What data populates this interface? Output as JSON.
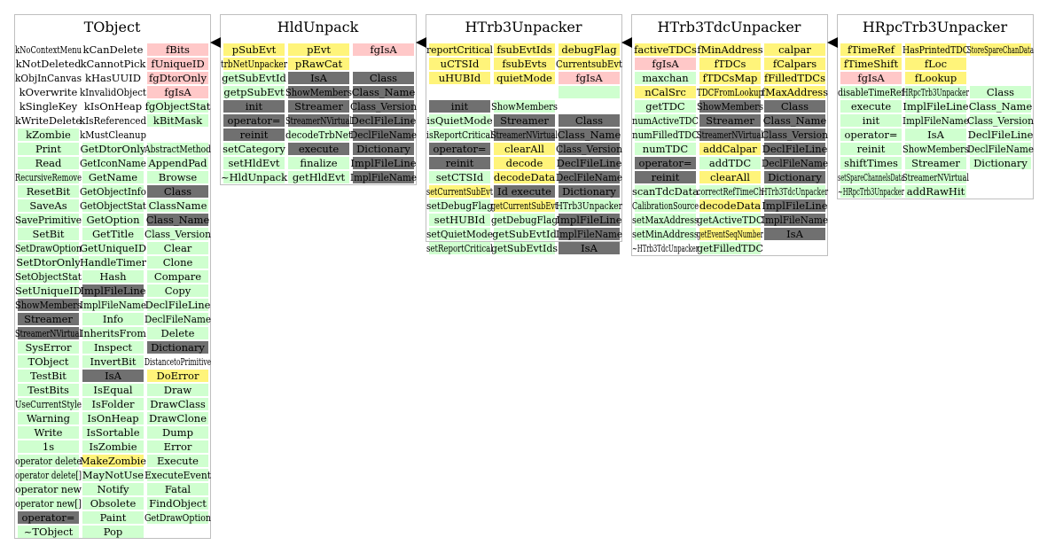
{
  "colors": {
    "Y": "#fff47a",
    "P": "#ffc8c8",
    "G": "#cfffcf",
    "D": "#707070",
    "W": "#ffffff",
    "border": "#bfbfbf",
    "arrow": "#000000"
  },
  "classes": [
    {
      "name": "TObject",
      "columns": [
        [
          [
            "kNoContextMenu",
            "W"
          ],
          [
            "kNotDeleted",
            "W"
          ],
          [
            "kObjInCanvas",
            "W"
          ],
          [
            "kOverwrite",
            "W"
          ],
          [
            "kSingleKey",
            "W"
          ],
          [
            "kWriteDelete",
            "W"
          ],
          [
            "kZombie",
            "G"
          ],
          [
            "Print",
            "G"
          ],
          [
            "Read",
            "G"
          ],
          [
            "RecursiveRemove",
            "G"
          ],
          [
            "ResetBit",
            "G"
          ],
          [
            "SaveAs",
            "G"
          ],
          [
            "SavePrimitive",
            "G"
          ],
          [
            "SetBit",
            "G"
          ],
          [
            "SetDrawOption",
            "G"
          ],
          [
            "SetDtorOnly",
            "G"
          ],
          [
            "SetObjectStat",
            "G"
          ],
          [
            "SetUniqueID",
            "G"
          ],
          [
            "ShowMembers",
            "D"
          ],
          [
            "Streamer",
            "D"
          ],
          [
            "StreamerNVirtual",
            "D"
          ],
          [
            "SysError",
            "G"
          ],
          [
            "TObject",
            "G"
          ],
          [
            "TestBit",
            "G"
          ],
          [
            "TestBits",
            "G"
          ],
          [
            "UseCurrentStyle",
            "G"
          ],
          [
            "Warning",
            "G"
          ],
          [
            "Write",
            "G"
          ],
          [
            "1s",
            "G"
          ],
          [
            "operator delete",
            "G"
          ],
          [
            "operator delete[]",
            "G"
          ],
          [
            "operator new",
            "G"
          ],
          [
            "operator new[]",
            "G"
          ],
          [
            "operator=",
            "D"
          ],
          [
            "~TObject",
            "G"
          ]
        ],
        [
          [
            "kCanDelete",
            "W"
          ],
          [
            "kCannotPick",
            "W"
          ],
          [
            "kHasUUID",
            "W"
          ],
          [
            "kInvalidObject",
            "W"
          ],
          [
            "kIsOnHeap",
            "W"
          ],
          [
            "kIsReferenced",
            "W"
          ],
          [
            "kMustCleanup",
            "W"
          ],
          [
            "GetDtorOnly",
            "G"
          ],
          [
            "GetIconName",
            "G"
          ],
          [
            "GetName",
            "G"
          ],
          [
            "GetObjectInfo",
            "G"
          ],
          [
            "GetObjectStat",
            "G"
          ],
          [
            "GetOption",
            "G"
          ],
          [
            "GetTitle",
            "G"
          ],
          [
            "GetUniqueID",
            "G"
          ],
          [
            "HandleTimer",
            "G"
          ],
          [
            "Hash",
            "G"
          ],
          [
            "ImplFileLine",
            "D"
          ],
          [
            "ImplFileName",
            "G"
          ],
          [
            "Info",
            "G"
          ],
          [
            "InheritsFrom",
            "G"
          ],
          [
            "Inspect",
            "G"
          ],
          [
            "InvertBit",
            "G"
          ],
          [
            "IsA",
            "D"
          ],
          [
            "IsEqual",
            "G"
          ],
          [
            "IsFolder",
            "G"
          ],
          [
            "IsOnHeap",
            "G"
          ],
          [
            "IsSortable",
            "G"
          ],
          [
            "IsZombie",
            "G"
          ],
          [
            "MakeZombie",
            "Y"
          ],
          [
            "MayNotUse",
            "G"
          ],
          [
            "Notify",
            "G"
          ],
          [
            "Obsolete",
            "G"
          ],
          [
            "Paint",
            "G"
          ],
          [
            "Pop",
            "G"
          ]
        ],
        [
          [
            "fBits",
            "P"
          ],
          [
            "fUniqueID",
            "P"
          ],
          [
            "fgDtorOnly",
            "P"
          ],
          [
            "fgIsA",
            "P"
          ],
          [
            "fgObjectStat",
            "G"
          ],
          [
            "kBitMask",
            "G"
          ],
          [
            "",
            "W"
          ],
          [
            "AbstractMethod",
            "G"
          ],
          [
            "AppendPad",
            "G"
          ],
          [
            "Browse",
            "G"
          ],
          [
            "Class",
            "D"
          ],
          [
            "ClassName",
            "G"
          ],
          [
            "Class_Name",
            "D"
          ],
          [
            "Class_Version",
            "G"
          ],
          [
            "Clear",
            "G"
          ],
          [
            "Clone",
            "G"
          ],
          [
            "Compare",
            "G"
          ],
          [
            "Copy",
            "G"
          ],
          [
            "DeclFileLine",
            "G"
          ],
          [
            "DeclFileName",
            "G"
          ],
          [
            "Delete",
            "G"
          ],
          [
            "Dictionary",
            "D"
          ],
          [
            "DistancetoPrimitive",
            "W"
          ],
          [
            "DoError",
            "Y"
          ],
          [
            "Draw",
            "G"
          ],
          [
            "DrawClass",
            "G"
          ],
          [
            "DrawClone",
            "G"
          ],
          [
            "Dump",
            "G"
          ],
          [
            "Error",
            "G"
          ],
          [
            "Execute",
            "G"
          ],
          [
            "ExecuteEvent",
            "G"
          ],
          [
            "Fatal",
            "G"
          ],
          [
            "FindObject",
            "G"
          ],
          [
            "GetDrawOption",
            "G"
          ]
        ]
      ]
    },
    {
      "name": "HldUnpack",
      "columns": [
        [
          [
            "pSubEvt",
            "Y"
          ],
          [
            "trbNetUnpacker",
            "Y"
          ],
          [
            "getSubEvtId",
            "G"
          ],
          [
            "getpSubEvt",
            "G"
          ],
          [
            "init",
            "D"
          ],
          [
            "operator=",
            "D"
          ],
          [
            "reinit",
            "D"
          ],
          [
            "setCategory",
            "G"
          ],
          [
            "setHldEvt",
            "G"
          ],
          [
            "~HldUnpack",
            "G"
          ]
        ],
        [
          [
            "pEvt",
            "Y"
          ],
          [
            "pRawCat",
            "Y"
          ],
          [
            "IsA",
            "D"
          ],
          [
            "ShowMembers",
            "D"
          ],
          [
            "Streamer",
            "D"
          ],
          [
            "StreamerNVirtual",
            "D"
          ],
          [
            "decodeTrbNet",
            "G"
          ],
          [
            "execute",
            "D"
          ],
          [
            "finalize",
            "G"
          ],
          [
            "getHldEvt",
            "G"
          ]
        ],
        [
          [
            "fgIsA",
            "P"
          ],
          [
            "",
            "W"
          ],
          [
            "Class",
            "D"
          ],
          [
            "Class_Name",
            "D"
          ],
          [
            "Class_Version",
            "D"
          ],
          [
            "DeclFileLine",
            "D"
          ],
          [
            "DeclFileName",
            "D"
          ],
          [
            "Dictionary",
            "D"
          ],
          [
            "ImplFileLine",
            "D"
          ],
          [
            "ImplFileName",
            "D"
          ]
        ]
      ]
    },
    {
      "name": "HTrb3Unpacker",
      "columns": [
        [
          [
            "reportCritical",
            "Y"
          ],
          [
            "uCTSId",
            "Y"
          ],
          [
            "uHUBId",
            "Y"
          ],
          [
            "",
            "W"
          ],
          [
            "init",
            "D"
          ],
          [
            "isQuietMode",
            "G"
          ],
          [
            "isReportCritical",
            "G"
          ],
          [
            "operator=",
            "D"
          ],
          [
            "reinit",
            "D"
          ],
          [
            "setCTSId",
            "G"
          ],
          [
            "setCurrentSubEvt",
            "Y"
          ],
          [
            "setDebugFlag",
            "G"
          ],
          [
            "setHUBId",
            "G"
          ],
          [
            "setQuietMode",
            "G"
          ],
          [
            "setReportCritical",
            "G"
          ]
        ],
        [
          [
            "fsubEvtIds",
            "Y"
          ],
          [
            "fsubEvts",
            "Y"
          ],
          [
            "quietMode",
            "Y"
          ],
          [
            "",
            "W"
          ],
          [
            "ShowMembers",
            "G"
          ],
          [
            "Streamer",
            "D"
          ],
          [
            "StreamerNVirtual",
            "D"
          ],
          [
            "clearAll",
            "Y"
          ],
          [
            "decode",
            "Y"
          ],
          [
            "decodeData",
            "Y"
          ],
          [
            "Id execute",
            "D"
          ],
          [
            "getCurrentSubEvt",
            "Y"
          ],
          [
            "getDebugFlag",
            "G"
          ],
          [
            "getSubEvtId",
            "G"
          ],
          [
            "getSubEvtIds",
            "G"
          ]
        ],
        [
          [
            "debugFlag",
            "Y"
          ],
          [
            "CurrentsubEvt",
            "Y"
          ],
          [
            "fgIsA",
            "P"
          ],
          [
            "",
            "G"
          ],
          [
            "",
            "W"
          ],
          [
            "Class",
            "D"
          ],
          [
            "Class_Name",
            "D"
          ],
          [
            "Class_Version",
            "D"
          ],
          [
            "DeclFileLine",
            "D"
          ],
          [
            "DeclFileName",
            "D"
          ],
          [
            "Dictionary",
            "D"
          ],
          [
            "HTrb3Unpacker",
            "G"
          ],
          [
            "ImplFileLine",
            "D"
          ],
          [
            "ImplFileName",
            "D"
          ],
          [
            "IsA",
            "D"
          ]
        ]
      ]
    },
    {
      "name": "HTrb3TdcUnpacker",
      "columns": [
        [
          [
            "factiveTDCs",
            "Y"
          ],
          [
            "fgIsA",
            "P"
          ],
          [
            "maxchan",
            "G"
          ],
          [
            "nCalSrc",
            "Y"
          ],
          [
            "getTDC",
            "G"
          ],
          [
            "numActiveTDC",
            "G"
          ],
          [
            "numFilledTDC",
            "G"
          ],
          [
            "numTDC",
            "G"
          ],
          [
            "operator=",
            "D"
          ],
          [
            "reinit",
            "D"
          ],
          [
            "scanTdcData",
            "G"
          ],
          [
            "CalibrationSource",
            "G"
          ],
          [
            "setMaxAddress",
            "G"
          ],
          [
            "setMinAddress",
            "G"
          ],
          [
            "~HTrb3TdcUnpacker",
            "W"
          ]
        ],
        [
          [
            "fMinAddress",
            "Y"
          ],
          [
            "fTDCs",
            "Y"
          ],
          [
            "fTDCsMap",
            "Y"
          ],
          [
            "TDCFromLookup",
            "Y"
          ],
          [
            "ShowMembers",
            "D"
          ],
          [
            "Streamer",
            "D"
          ],
          [
            "StreamerNVirtual",
            "D"
          ],
          [
            "addCalpar",
            "Y"
          ],
          [
            "addTDC",
            "G"
          ],
          [
            "clearAll",
            "Y"
          ],
          [
            "correctRefTimeCh",
            "G"
          ],
          [
            "decodeData",
            "Y"
          ],
          [
            "getActiveTDC",
            "G"
          ],
          [
            "getEventSeqNumber",
            "Y"
          ],
          [
            "getFilledTDC",
            "G"
          ]
        ],
        [
          [
            "calpar",
            "Y"
          ],
          [
            "fCalpars",
            "Y"
          ],
          [
            "fFilledTDCs",
            "Y"
          ],
          [
            "fMaxAddress",
            "Y"
          ],
          [
            "Class",
            "D"
          ],
          [
            "Class_Name",
            "D"
          ],
          [
            "Class_Version",
            "D"
          ],
          [
            "DeclFileLine",
            "D"
          ],
          [
            "DeclFileName",
            "D"
          ],
          [
            "Dictionary",
            "D"
          ],
          [
            "HTrb3TdcUnpacker",
            "G"
          ],
          [
            "ImplFileLine",
            "D"
          ],
          [
            "ImplFileName",
            "D"
          ],
          [
            "IsA",
            "D"
          ]
        ]
      ]
    },
    {
      "name": "HRpcTrb3Unpacker",
      "columns": [
        [
          [
            "fTimeRef",
            "Y"
          ],
          [
            "fTimeShift",
            "Y"
          ],
          [
            "fgIsA",
            "P"
          ],
          [
            "disableTimeRef",
            "G"
          ],
          [
            "execute",
            "G"
          ],
          [
            "init",
            "G"
          ],
          [
            "operator=",
            "G"
          ],
          [
            "reinit",
            "G"
          ],
          [
            "shiftTimes",
            "G"
          ],
          [
            "setSpareChannelsData",
            "G"
          ],
          [
            "~HRpcTrb3Unpacker",
            "G"
          ]
        ],
        [
          [
            "HasPrintedTDC",
            "Y"
          ],
          [
            "fLoc",
            "Y"
          ],
          [
            "fLookup",
            "Y"
          ],
          [
            "HRpcTrb3Unpacker",
            "G"
          ],
          [
            "ImplFileLine",
            "G"
          ],
          [
            "ImplFileName",
            "G"
          ],
          [
            "IsA",
            "G"
          ],
          [
            "ShowMembers",
            "G"
          ],
          [
            "Streamer",
            "G"
          ],
          [
            "StreamerNVirtual",
            "G"
          ],
          [
            "addRawHit",
            "G"
          ]
        ],
        [
          [
            "StoreSpareChanData",
            "Y"
          ],
          [
            "",
            "W"
          ],
          [
            "",
            "W"
          ],
          [
            "Class",
            "G"
          ],
          [
            "Class_Name",
            "G"
          ],
          [
            "Class_Version",
            "G"
          ],
          [
            "DeclFileLine",
            "G"
          ],
          [
            "DeclFileName",
            "G"
          ],
          [
            "Dictionary",
            "G"
          ]
        ]
      ]
    }
  ]
}
